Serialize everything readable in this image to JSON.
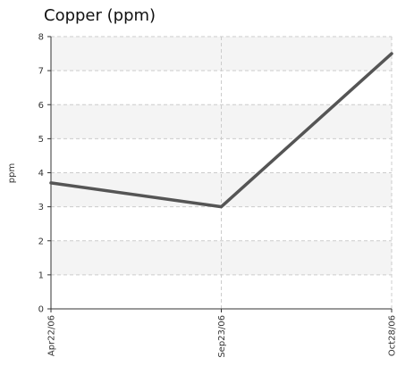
{
  "chart_data": {
    "type": "line",
    "title": "Copper (ppm)",
    "ylabel": "ppm",
    "xlabel": "",
    "categories": [
      "Apr22/06",
      "Sep23/06",
      "Oct28/06"
    ],
    "series": [
      {
        "values": [
          3.7,
          3.0,
          7.5
        ]
      }
    ],
    "ylim": [
      0,
      8
    ],
    "yticks": [
      0,
      1,
      2,
      3,
      4,
      5,
      6,
      7,
      8
    ],
    "grid": true,
    "colors": {
      "line": "#555555",
      "band": "#f4f4f4",
      "grid": "#cccccc",
      "axis": "#333333"
    }
  }
}
